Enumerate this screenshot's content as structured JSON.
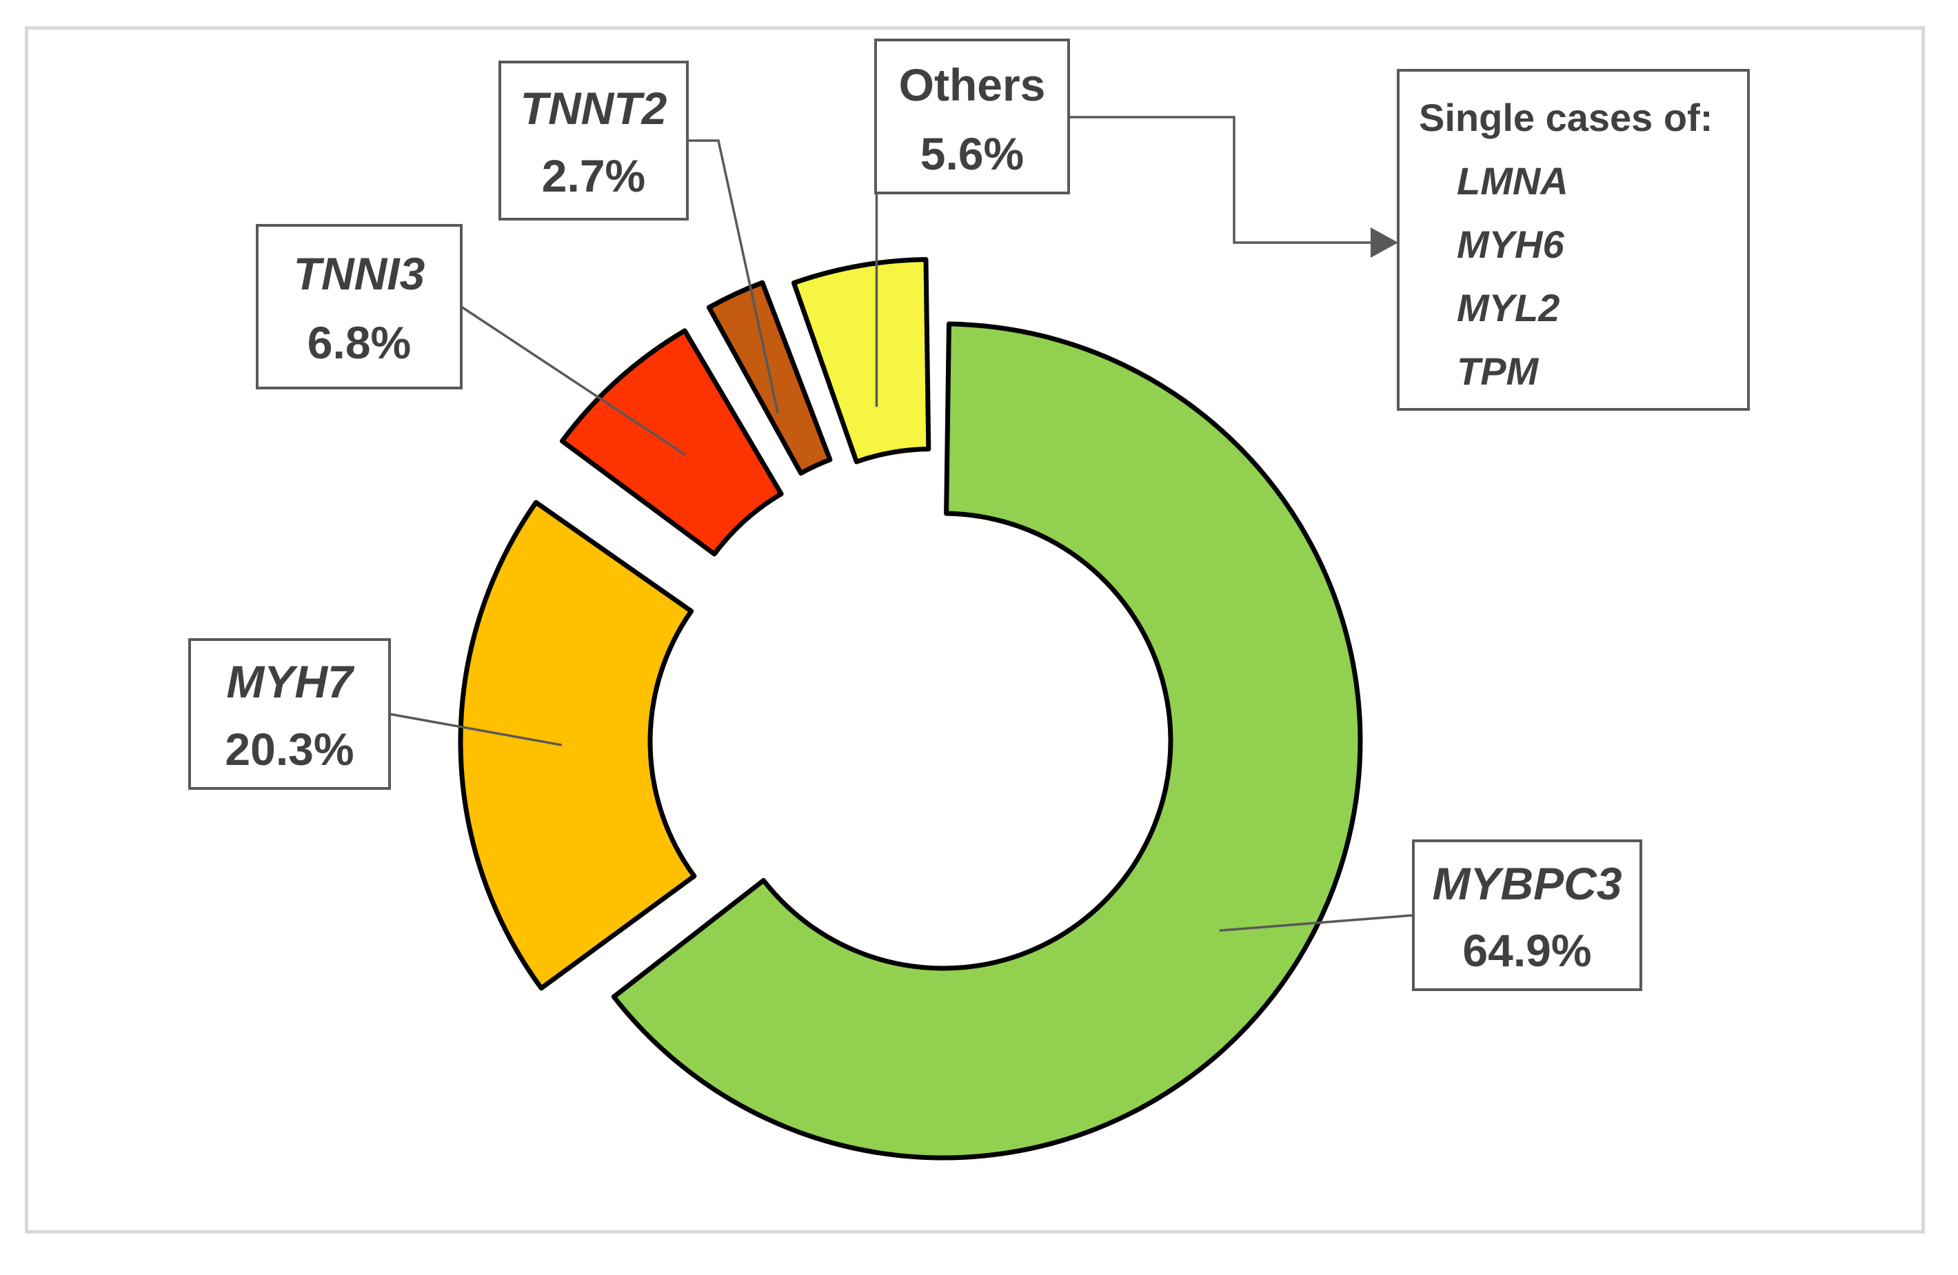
{
  "chart_data": {
    "type": "donut",
    "title": "",
    "slices": [
      {
        "label": "MYBPC3",
        "display": "64.9%",
        "value": 64.9,
        "color": "#92d050"
      },
      {
        "label": "MYH7",
        "display": "20.3%",
        "value": 20.3,
        "color": "#ffc000"
      },
      {
        "label": "TNNI3",
        "display": "6.8%",
        "value": 6.8,
        "color": "#ff3300"
      },
      {
        "label": "TNNT2",
        "display": "2.7%",
        "value": 2.7,
        "color": "#c55a11"
      },
      {
        "label": "Others",
        "display": "5.6%",
        "value": 5.6,
        "color": "#f5f542"
      }
    ],
    "others_note": {
      "title": "Single cases of:",
      "items": [
        "LMNA",
        "MYH6",
        "MYL2",
        "TPM"
      ]
    }
  }
}
